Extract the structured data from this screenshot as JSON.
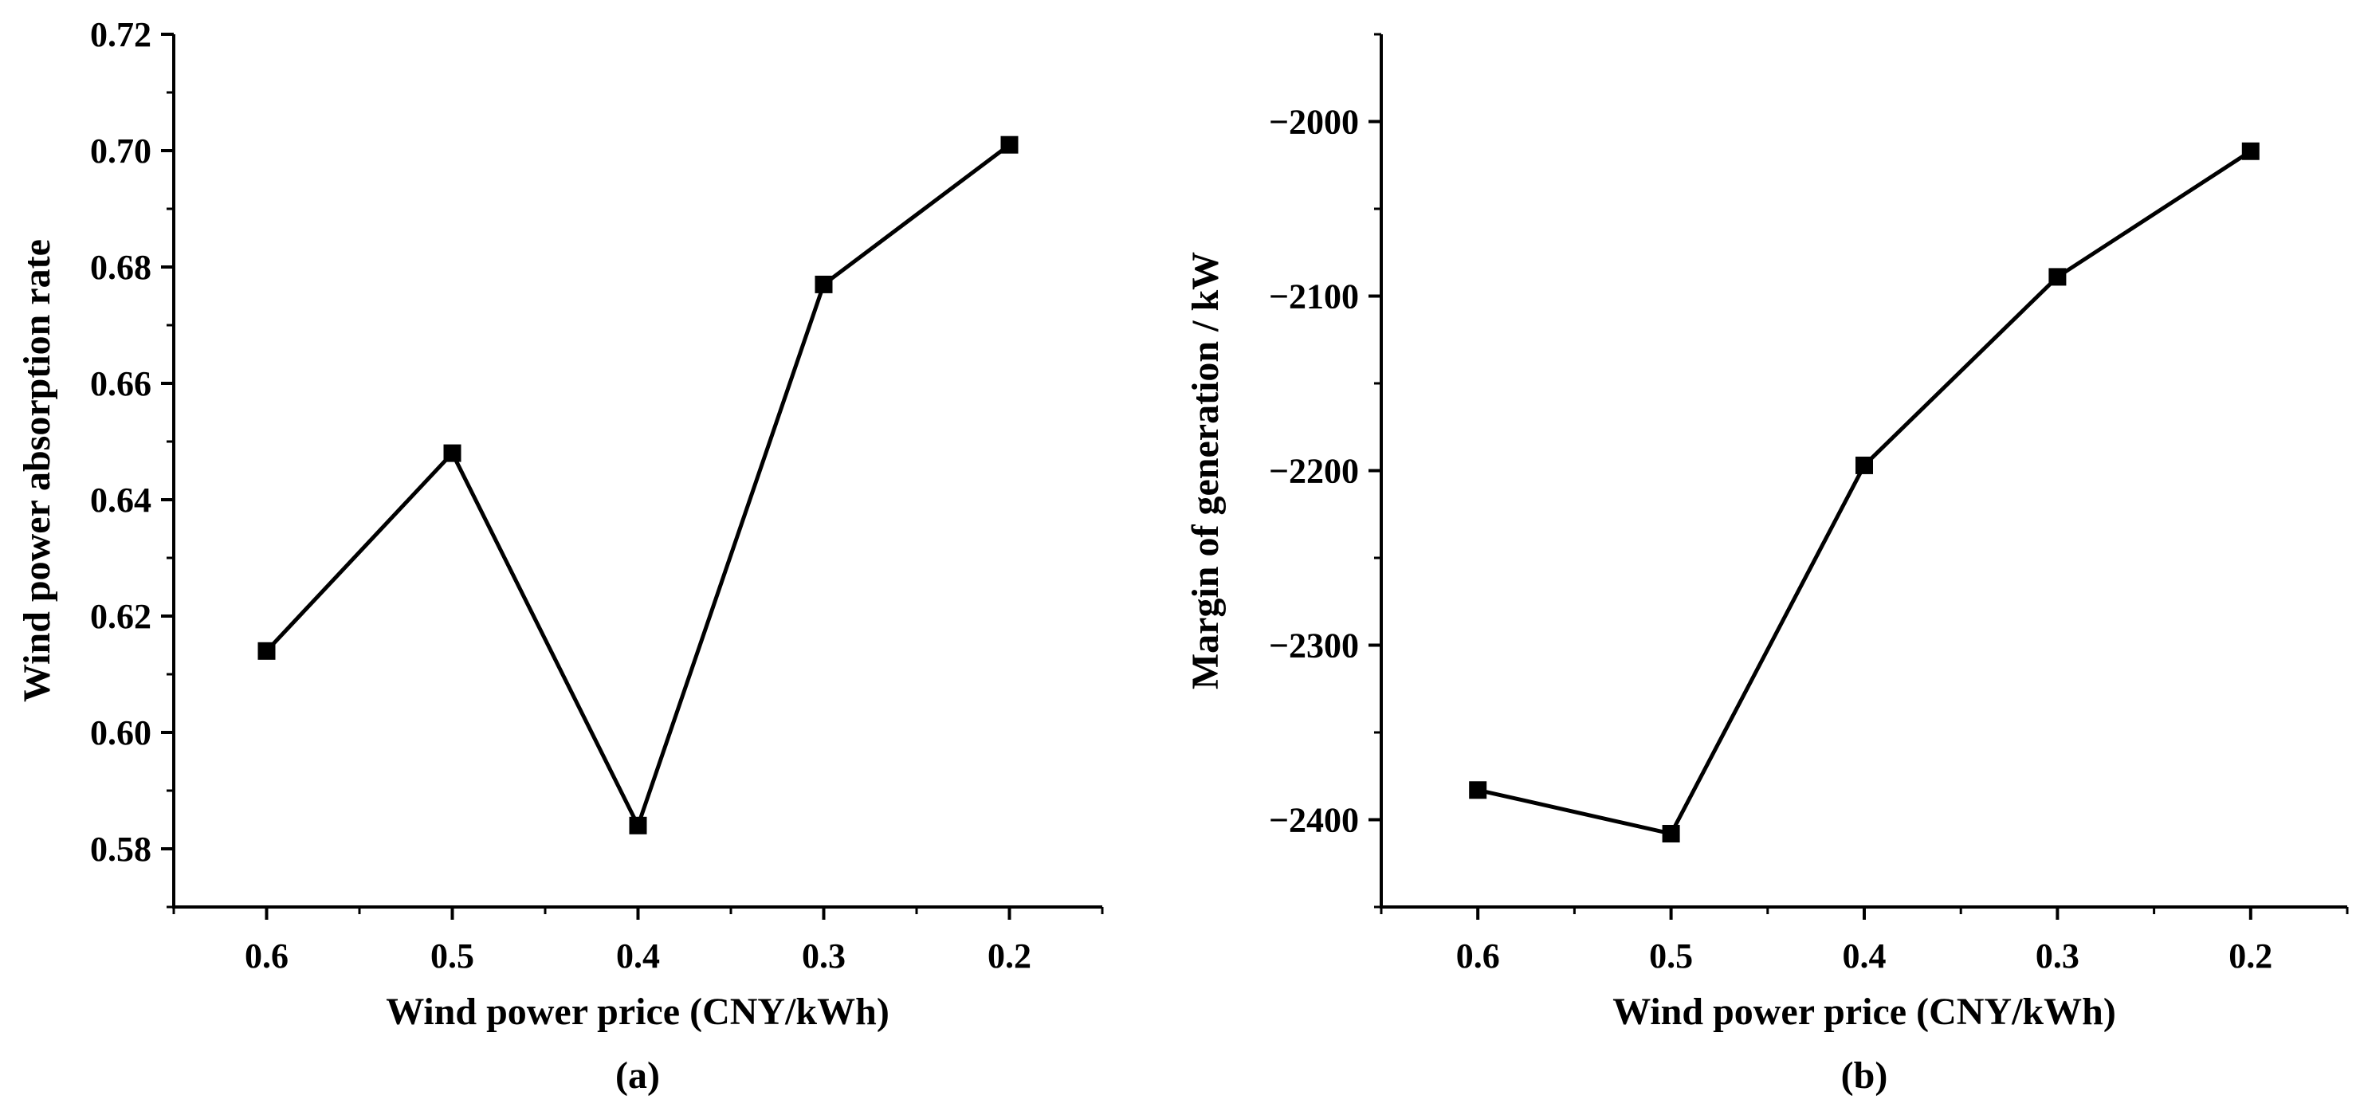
{
  "colors": {
    "line": "#000000",
    "marker": "#000000",
    "background": "#ffffff"
  },
  "chart_data": [
    {
      "type": "line",
      "panel_label": "(a)",
      "title": "",
      "xlabel": "Wind power price (CNY/kWh)",
      "ylabel": "Wind power absorption rate",
      "categories": [
        "0.6",
        "0.5",
        "0.4",
        "0.3",
        "0.2"
      ],
      "x": [
        0.6,
        0.5,
        0.4,
        0.3,
        0.2
      ],
      "xlim": [
        0.65,
        0.15
      ],
      "x_ticks": [
        0.6,
        0.5,
        0.4,
        0.3,
        0.2
      ],
      "x_tick_labels": [
        "0.6",
        "0.5",
        "0.4",
        "0.3",
        "0.2"
      ],
      "ylim": [
        0.57,
        0.72
      ],
      "y_ticks": [
        0.58,
        0.6,
        0.62,
        0.64,
        0.66,
        0.68,
        0.7,
        0.72
      ],
      "y_tick_labels": [
        "0.58",
        "0.60",
        "0.62",
        "0.64",
        "0.66",
        "0.68",
        "0.70",
        "0.72"
      ],
      "series": [
        {
          "name": "absorption rate",
          "marker": "square",
          "values": [
            0.614,
            0.648,
            0.584,
            0.677,
            0.701
          ]
        }
      ],
      "grid": false,
      "legend": "none"
    },
    {
      "type": "line",
      "panel_label": "(b)",
      "title": "",
      "xlabel": "Wind power price (CNY/kWh)",
      "ylabel": "Margin of generation / kW",
      "categories": [
        "0.6",
        "0.5",
        "0.4",
        "0.3",
        "0.2"
      ],
      "x": [
        0.6,
        0.5,
        0.4,
        0.3,
        0.2
      ],
      "xlim": [
        0.65,
        0.15
      ],
      "x_ticks": [
        0.6,
        0.5,
        0.4,
        0.3,
        0.2
      ],
      "x_tick_labels": [
        "0.6",
        "0.5",
        "0.4",
        "0.3",
        "0.2"
      ],
      "ylim": [
        -2450,
        -1950
      ],
      "y_ticks": [
        -2400,
        -2300,
        -2200,
        -2100,
        -2000
      ],
      "y_tick_labels": [
        "-2400",
        "-2300",
        "-2200",
        "-2100",
        "-2000"
      ],
      "series": [
        {
          "name": "margin of generation",
          "marker": "square",
          "values": [
            -2383,
            -2408,
            -2197,
            -2089,
            -2017
          ]
        }
      ],
      "grid": false,
      "legend": "none"
    }
  ]
}
